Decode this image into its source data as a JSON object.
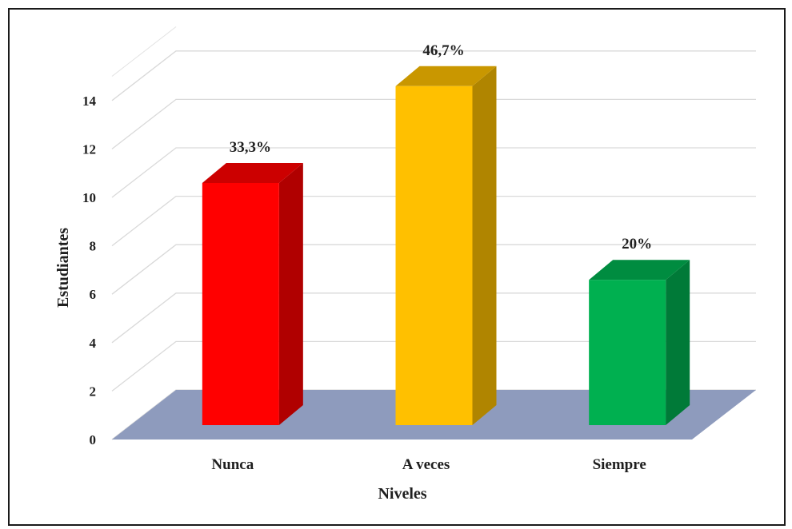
{
  "chart_data": {
    "type": "bar",
    "title": "",
    "xlabel": "Niveles",
    "ylabel": "Estudiantes",
    "categories": [
      "Nunca",
      "A veces",
      "Siempre"
    ],
    "values": [
      10,
      14,
      6
    ],
    "data_labels": [
      "33,3%",
      "46,7%",
      "20%"
    ],
    "colors": {
      "front": [
        "#ff0000",
        "#ffc000",
        "#00b050"
      ],
      "side": [
        "#b00000",
        "#b08500",
        "#007a38"
      ],
      "top": [
        "#cc0000",
        "#c99700",
        "#008c40"
      ],
      "floor": "#8e9bbd"
    },
    "ylim": [
      0,
      15
    ],
    "yticks": [
      "0",
      "2",
      "4",
      "6",
      "8",
      "10",
      "12",
      "14"
    ],
    "grid": true,
    "projection": "3d"
  }
}
